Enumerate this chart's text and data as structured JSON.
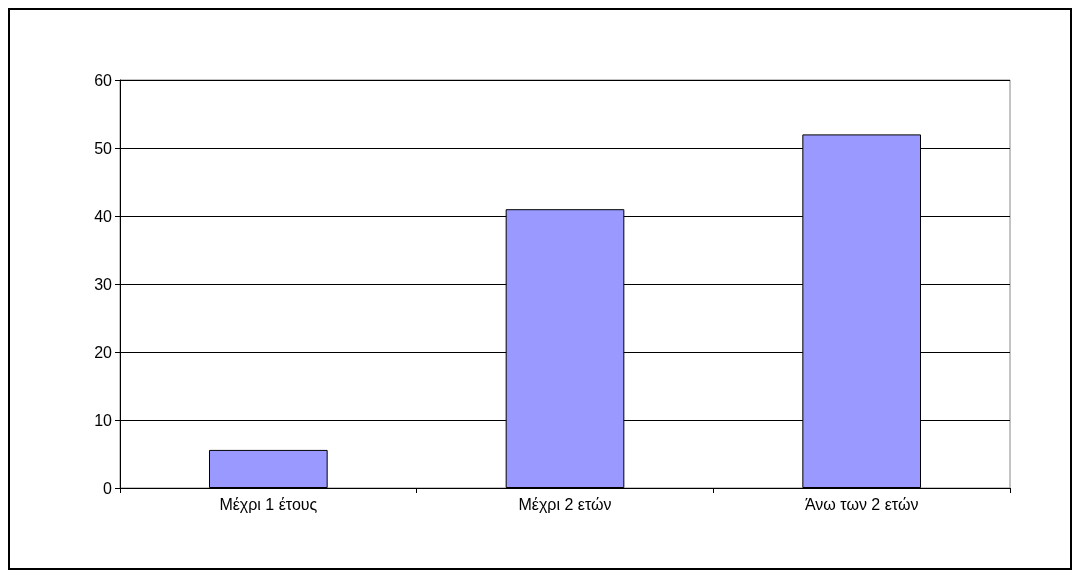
{
  "chart_data": {
    "type": "bar",
    "categories": [
      "Μέχρι 1 έτους",
      "Μέχρι 2 ετών",
      "Άνω των 2 ετών"
    ],
    "values": [
      5.6,
      41,
      52
    ],
    "color": "#9999ff",
    "ylim": [
      0,
      60
    ],
    "yticks": [
      0,
      10,
      20,
      30,
      40,
      50,
      60
    ],
    "grid": "y"
  }
}
